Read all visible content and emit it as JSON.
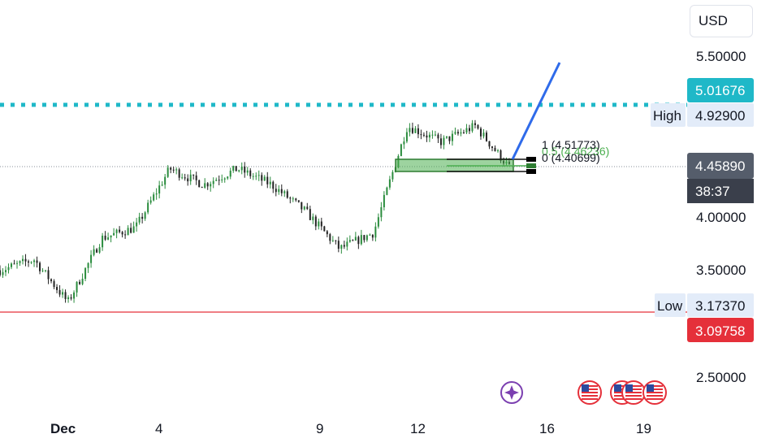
{
  "currency_button": {
    "label": "USD"
  },
  "price_axis": {
    "ticks": [
      "5.50000",
      "4.00000",
      "3.50000",
      "2.50000"
    ],
    "tags": {
      "target": "5.01676",
      "high_label": "High",
      "high_value": "4.92900",
      "last_price": "4.45890",
      "countdown": "38:37",
      "low_label": "Low",
      "low_value": "3.17370",
      "low_line_value": "3.09758"
    }
  },
  "time_axis": {
    "labels": [
      "Dec",
      "4",
      "9",
      "12",
      "16",
      "19"
    ]
  },
  "fib_tool": {
    "level_1_label": "1 (4.51773)",
    "level_0_label": "0 (4.40699)",
    "level_mid_label": "0.5 (4.46236)"
  },
  "colors": {
    "candle_up": "#2a8c3d",
    "candle_down": "#222222",
    "target_line": "#1fb8c8",
    "low_line": "#e5303a",
    "trend_line": "#2f6bea",
    "fib_zone": "#4caf50",
    "last_price_tag": "#555d6b",
    "countdown_tag": "#3a3f4b",
    "event_purple": "#7b3fb0",
    "event_flag": "#e5303a"
  },
  "chart_data": {
    "type": "candlestick",
    "symbol_currency": "USD",
    "x_labels": [
      "Dec",
      "4",
      "9",
      "12",
      "16",
      "19"
    ],
    "ylim": [
      2.4,
      5.7
    ],
    "y_ticks": [
      5.5,
      4.0,
      3.5,
      2.5
    ],
    "close_path": [
      {
        "date": "Nov 30",
        "close": 3.5
      },
      {
        "date": "Dec 1",
        "close": 3.6
      },
      {
        "date": "Dec 2",
        "close": 3.2
      },
      {
        "date": "Dec 3",
        "close": 3.8
      },
      {
        "date": "Dec 4",
        "close": 3.9
      },
      {
        "date": "Dec 5",
        "close": 4.45
      },
      {
        "date": "Dec 6",
        "close": 4.3
      },
      {
        "date": "Dec 7",
        "close": 4.45
      },
      {
        "date": "Dec 8",
        "close": 4.3
      },
      {
        "date": "Dec 9",
        "close": 4.05
      },
      {
        "date": "Dec 10",
        "close": 3.7
      },
      {
        "date": "Dec 11",
        "close": 3.85
      },
      {
        "date": "Dec 12",
        "close": 4.85
      },
      {
        "date": "Dec 13",
        "close": 4.7
      },
      {
        "date": "Dec 14",
        "close": 4.85
      },
      {
        "date": "Dec 15",
        "close": 4.46
      }
    ],
    "levels": {
      "target": 5.01676,
      "high": 4.929,
      "last_price": 4.4589,
      "low": 3.1737,
      "low_line": 3.09758,
      "fib_1": 4.51773,
      "fib_0": 4.40699,
      "fib_0_5": 4.46236
    },
    "countdown": "38:37",
    "grid": false,
    "legend": "none"
  }
}
